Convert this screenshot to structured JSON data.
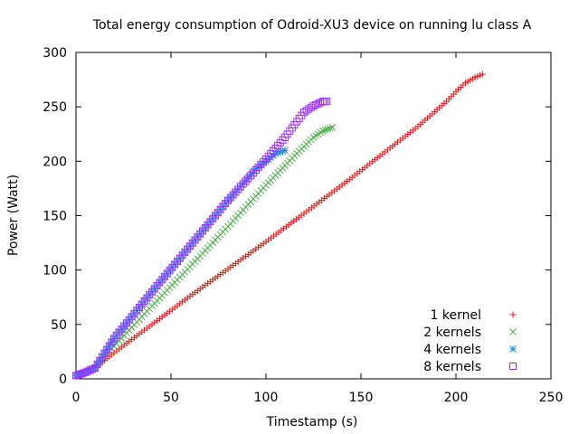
{
  "chart_data": {
    "type": "scatter",
    "title": "Total energy consumption of Odroid-XU3 device on running lu class A",
    "xlabel": "Timestamp (s)",
    "ylabel": "Power (Watt)",
    "xlim": [
      0,
      250
    ],
    "ylim": [
      0,
      300
    ],
    "xticks": [
      "0",
      "50",
      "100",
      "150",
      "200",
      "250"
    ],
    "yticks": [
      "0",
      "50",
      "100",
      "150",
      "200",
      "250",
      "300"
    ],
    "grid": false,
    "legend_position": "bottom-right",
    "series": [
      {
        "name": "1 kernel",
        "color": "#e41a1c",
        "marker": "plus",
        "points": [
          [
            0,
            3
          ],
          [
            5,
            6
          ],
          [
            10,
            10
          ],
          [
            20,
            24
          ],
          [
            40,
            50
          ],
          [
            60,
            76
          ],
          [
            80,
            101
          ],
          [
            100,
            126
          ],
          [
            120,
            152
          ],
          [
            140,
            178
          ],
          [
            160,
            205
          ],
          [
            180,
            232
          ],
          [
            195,
            255
          ],
          [
            200,
            264
          ],
          [
            205,
            272
          ],
          [
            210,
            277
          ],
          [
            214,
            280
          ]
        ]
      },
      {
        "name": "2 kernels",
        "color": "#4daf4a",
        "marker": "cross",
        "points": [
          [
            0,
            3
          ],
          [
            5,
            6
          ],
          [
            10,
            10
          ],
          [
            20,
            30
          ],
          [
            40,
            67
          ],
          [
            60,
            103
          ],
          [
            80,
            140
          ],
          [
            100,
            178
          ],
          [
            115,
            205
          ],
          [
            125,
            222
          ],
          [
            130,
            228
          ],
          [
            135,
            231
          ]
        ]
      },
      {
        "name": "4 kernels",
        "color": "#2c8fd6",
        "marker": "star",
        "points": [
          [
            0,
            3
          ],
          [
            5,
            6
          ],
          [
            10,
            10
          ],
          [
            20,
            37
          ],
          [
            40,
            80
          ],
          [
            60,
            122
          ],
          [
            80,
            164
          ],
          [
            95,
            193
          ],
          [
            100,
            200
          ],
          [
            105,
            207
          ],
          [
            110,
            210
          ]
        ]
      },
      {
        "name": "8 kernels",
        "color": "#9b30ff",
        "marker": "square",
        "points": [
          [
            0,
            3
          ],
          [
            5,
            6
          ],
          [
            10,
            10
          ],
          [
            20,
            37
          ],
          [
            40,
            80
          ],
          [
            60,
            122
          ],
          [
            80,
            164
          ],
          [
            100,
            202
          ],
          [
            110,
            222
          ],
          [
            120,
            245
          ],
          [
            125,
            251
          ],
          [
            130,
            255
          ],
          [
            132,
            255
          ]
        ]
      }
    ]
  }
}
